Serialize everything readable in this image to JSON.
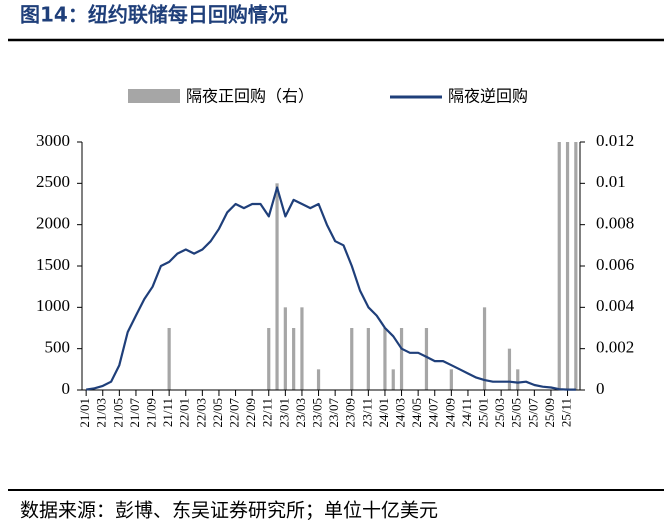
{
  "chart_data": {
    "type": "bar-line",
    "title": "图14：纽约联储每日回购情况",
    "source": "数据来源：彭博、东吴证券研究所；单位十亿美元",
    "categories": [
      "21/01",
      null,
      "21/03",
      null,
      "21/05",
      null,
      "21/07",
      null,
      "21/09",
      null,
      "21/11",
      null,
      "22/01",
      null,
      "22/03",
      null,
      "22/05",
      null,
      "22/07",
      null,
      "22/09",
      null,
      "22/11",
      null,
      "23/01",
      null,
      "23/03",
      null,
      "23/05",
      null,
      "23/07",
      null,
      "23/09",
      null,
      "23/11",
      null,
      "24/01",
      null,
      "24/03",
      null,
      "24/05",
      null,
      "24/07",
      null,
      "24/09",
      null,
      "24/11",
      null,
      "25/01",
      null,
      "25/03",
      null,
      "25/05",
      null,
      "25/07",
      null,
      "25/09",
      null,
      "25/11",
      null
    ],
    "series": [
      {
        "name": "隔夜正回购（右）",
        "color": "#a6a6a6",
        "axis": "y2",
        "values": [
          0,
          0,
          0,
          0,
          0,
          0,
          0,
          0,
          0,
          0,
          0.003,
          0,
          0,
          0,
          0,
          0,
          0,
          0,
          0,
          0,
          0,
          0,
          0.003,
          0.01,
          0.004,
          0.003,
          0.004,
          0,
          0.001,
          0,
          0,
          0,
          0.003,
          0,
          0.003,
          0,
          0.003,
          0.001,
          0.003,
          0,
          0,
          0.003,
          0,
          0,
          0.001,
          0,
          0,
          0,
          0.004,
          0,
          0,
          0.002,
          0.001,
          0,
          0,
          0,
          0,
          0.012,
          0.012,
          0.012
        ]
      },
      {
        "name": "隔夜逆回购",
        "color": "#1f3f7a",
        "values": [
          5,
          20,
          50,
          100,
          300,
          700,
          900,
          1100,
          1250,
          1500,
          1550,
          1650,
          1700,
          1650,
          1700,
          1800,
          1950,
          2150,
          2250,
          2200,
          2250,
          2250,
          2100,
          2450,
          2100,
          2300,
          2250,
          2200,
          2250,
          2000,
          1800,
          1750,
          1500,
          1200,
          1000,
          900,
          750,
          650,
          500,
          450,
          450,
          400,
          350,
          350,
          300,
          250,
          200,
          150,
          120,
          100,
          100,
          100,
          90,
          100,
          60,
          40,
          30,
          10,
          5,
          5
        ]
      }
    ],
    "ylim": [
      0,
      3000
    ],
    "yticks": [
      0,
      500,
      1000,
      1500,
      2000,
      2500,
      3000
    ],
    "y2lim": [
      0,
      0.012
    ],
    "y2ticks": [
      0,
      0.002,
      0.004,
      0.006,
      0.008,
      0.01,
      0.012
    ]
  }
}
